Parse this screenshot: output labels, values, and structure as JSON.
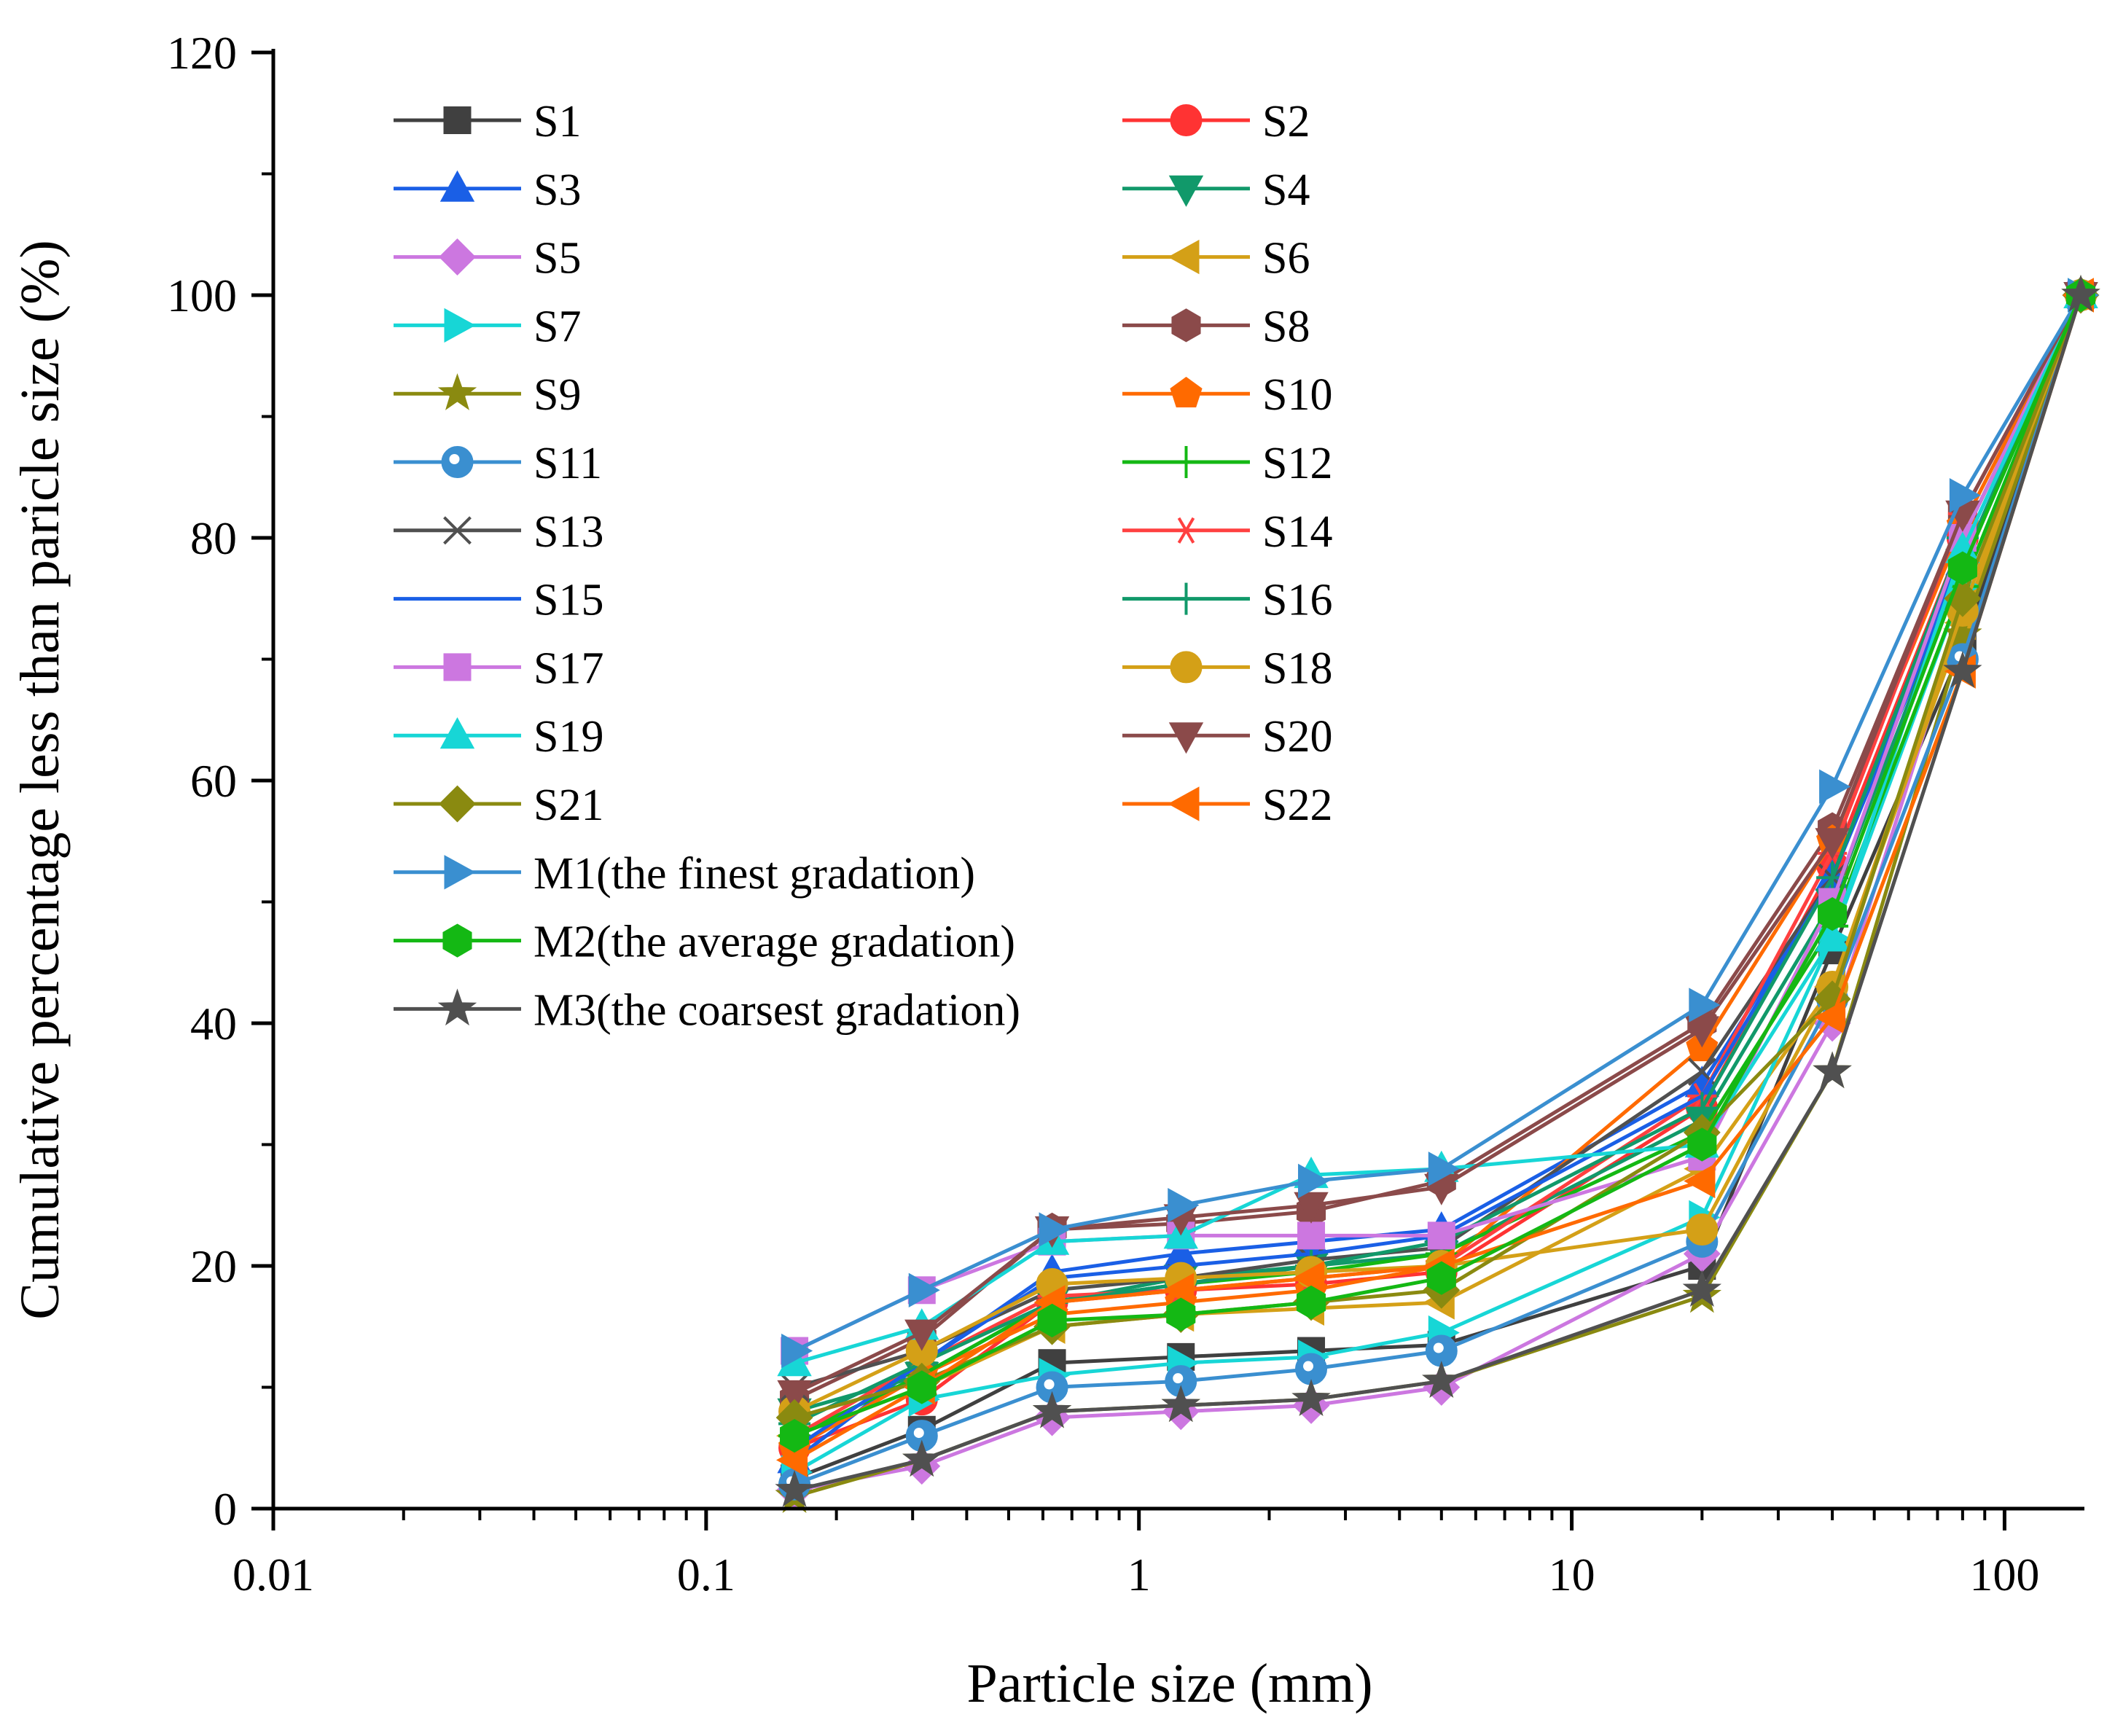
{
  "chart_data": {
    "type": "line",
    "title": "",
    "xlabel": "Particle size (mm)",
    "ylabel": "Cumulative percentage less than paricle size (%)",
    "xscale": "log",
    "xlim": [
      0.01,
      150
    ],
    "ylim": [
      0,
      120
    ],
    "x_ticks": [
      {
        "value": 0.01,
        "label": "0.01"
      },
      {
        "value": 0.1,
        "label": "0.1"
      },
      {
        "value": 1,
        "label": "1"
      },
      {
        "value": 10,
        "label": "10"
      },
      {
        "value": 100,
        "label": "100"
      }
    ],
    "y_ticks": [
      {
        "value": 0,
        "label": "0"
      },
      {
        "value": 20,
        "label": "20"
      },
      {
        "value": 40,
        "label": "40"
      },
      {
        "value": 60,
        "label": "60"
      },
      {
        "value": 80,
        "label": "80"
      },
      {
        "value": 100,
        "label": "100"
      },
      {
        "value": 120,
        "label": "120"
      }
    ],
    "grid": false,
    "legend_position": "top-left",
    "x": [
      0.16,
      0.315,
      0.63,
      1.25,
      2.5,
      5,
      20,
      40,
      80,
      150
    ],
    "series": [
      {
        "name": "S1",
        "color": "#404040",
        "marker": "square",
        "values": [
          2.5,
          6.5,
          12,
          12.5,
          13,
          13.5,
          20,
          46,
          71,
          100
        ]
      },
      {
        "name": "S2",
        "color": "#ff3333",
        "marker": "circle",
        "values": [
          5,
          9,
          17,
          18,
          18.5,
          19.5,
          33,
          53,
          80,
          100
        ]
      },
      {
        "name": "S3",
        "color": "#1a5fe6",
        "marker": "triangle-up",
        "values": [
          4,
          12,
          19.5,
          21,
          22,
          23,
          35,
          52,
          78,
          100
        ]
      },
      {
        "name": "S4",
        "color": "#11996a",
        "marker": "triangle-down",
        "values": [
          8,
          11,
          17,
          19,
          20,
          21,
          32,
          50,
          78,
          100
        ]
      },
      {
        "name": "S5",
        "color": "#cc77e0",
        "marker": "diamond",
        "values": [
          1.5,
          3.5,
          7.5,
          8,
          8.5,
          10,
          21,
          40,
          74,
          100
        ]
      },
      {
        "name": "S6",
        "color": "#d4a017",
        "marker": "triangle-left",
        "values": [
          6,
          10,
          15,
          16,
          16.5,
          17,
          28,
          43,
          73,
          100
        ]
      },
      {
        "name": "S7",
        "color": "#17d6d6",
        "marker": "triangle-right",
        "values": [
          3,
          9,
          11,
          12,
          12.5,
          14.5,
          24,
          47,
          76,
          100
        ]
      },
      {
        "name": "S8",
        "color": "#8b4a4a",
        "marker": "hexagon",
        "values": [
          9,
          14,
          23,
          23.5,
          24.5,
          27,
          40,
          56,
          82,
          100
        ]
      },
      {
        "name": "S9",
        "color": "#8a8a10",
        "marker": "star",
        "values": [
          1,
          4,
          8,
          8.5,
          9,
          10.5,
          17.5,
          36,
          72,
          100
        ]
      },
      {
        "name": "S10",
        "color": "#ff6a00",
        "marker": "pentagon",
        "values": [
          5,
          11,
          16,
          17,
          18,
          20,
          38,
          55,
          81,
          100
        ]
      },
      {
        "name": "S11",
        "color": "#3a8fd0",
        "marker": "ball",
        "values": [
          2,
          6,
          10,
          10.5,
          11.5,
          13,
          22,
          42,
          70,
          100
        ]
      },
      {
        "name": "S12",
        "color": "#14b814",
        "marker": "plus",
        "values": [
          6,
          11,
          17,
          18.5,
          19.5,
          21,
          31,
          48,
          76,
          100
        ]
      },
      {
        "name": "S13",
        "color": "#505050",
        "marker": "x",
        "values": [
          10,
          13,
          18,
          19,
          20.5,
          21.5,
          36,
          52,
          80,
          100
        ]
      },
      {
        "name": "S14",
        "color": "#ff4040",
        "marker": "asterisk",
        "values": [
          6,
          12,
          17.5,
          18,
          19,
          20,
          34,
          54,
          82,
          100
        ]
      },
      {
        "name": "S15",
        "color": "#1a5fe6",
        "marker": "none",
        "values": [
          5,
          12,
          19,
          20,
          21,
          22.5,
          34,
          52,
          79,
          100
        ]
      },
      {
        "name": "S16",
        "color": "#11996a",
        "marker": "plus",
        "values": [
          7,
          12,
          17,
          18.5,
          20,
          22,
          33,
          52,
          80,
          100
        ]
      },
      {
        "name": "S17",
        "color": "#cc77e0",
        "marker": "square",
        "values": [
          13,
          18,
          22,
          22.5,
          22.5,
          22.5,
          29,
          50,
          80,
          100
        ]
      },
      {
        "name": "S18",
        "color": "#d4a017",
        "marker": "circle",
        "values": [
          8,
          13,
          18.5,
          19,
          19.5,
          20,
          23,
          43,
          74,
          100
        ]
      },
      {
        "name": "S19",
        "color": "#17d6d6",
        "marker": "triangle-up",
        "values": [
          12,
          15,
          22,
          22.5,
          27.5,
          28,
          30,
          47,
          79,
          100
        ]
      },
      {
        "name": "S20",
        "color": "#8b4a4a",
        "marker": "triangle-down",
        "values": [
          9.5,
          14.5,
          23,
          24,
          25,
          26.5,
          39.5,
          55,
          82,
          100
        ]
      },
      {
        "name": "S21",
        "color": "#8a8a10",
        "marker": "diamond",
        "values": [
          7.5,
          10.5,
          15,
          16,
          17,
          18,
          31,
          42,
          75,
          100
        ]
      },
      {
        "name": "S22",
        "color": "#ff6a00",
        "marker": "triangle-left",
        "values": [
          4,
          10,
          17,
          18,
          19,
          20,
          27,
          40.5,
          69,
          100
        ]
      },
      {
        "name": "M1(the finest gradation)",
        "color": "#3a8fd0",
        "marker": "triangle-right",
        "values": [
          13,
          18,
          23,
          25,
          27,
          28,
          41.5,
          59.5,
          83.5,
          100
        ]
      },
      {
        "name": "M2(the average gradation)",
        "color": "#14b814",
        "marker": "hexagon",
        "values": [
          6,
          10,
          15.5,
          16,
          17,
          19,
          30,
          49,
          77.5,
          100
        ]
      },
      {
        "name": "M3(the coarsest gradation)",
        "color": "#505050",
        "marker": "star",
        "values": [
          1.5,
          4,
          8,
          8.5,
          9,
          10.5,
          18,
          36,
          69,
          100
        ]
      }
    ]
  }
}
